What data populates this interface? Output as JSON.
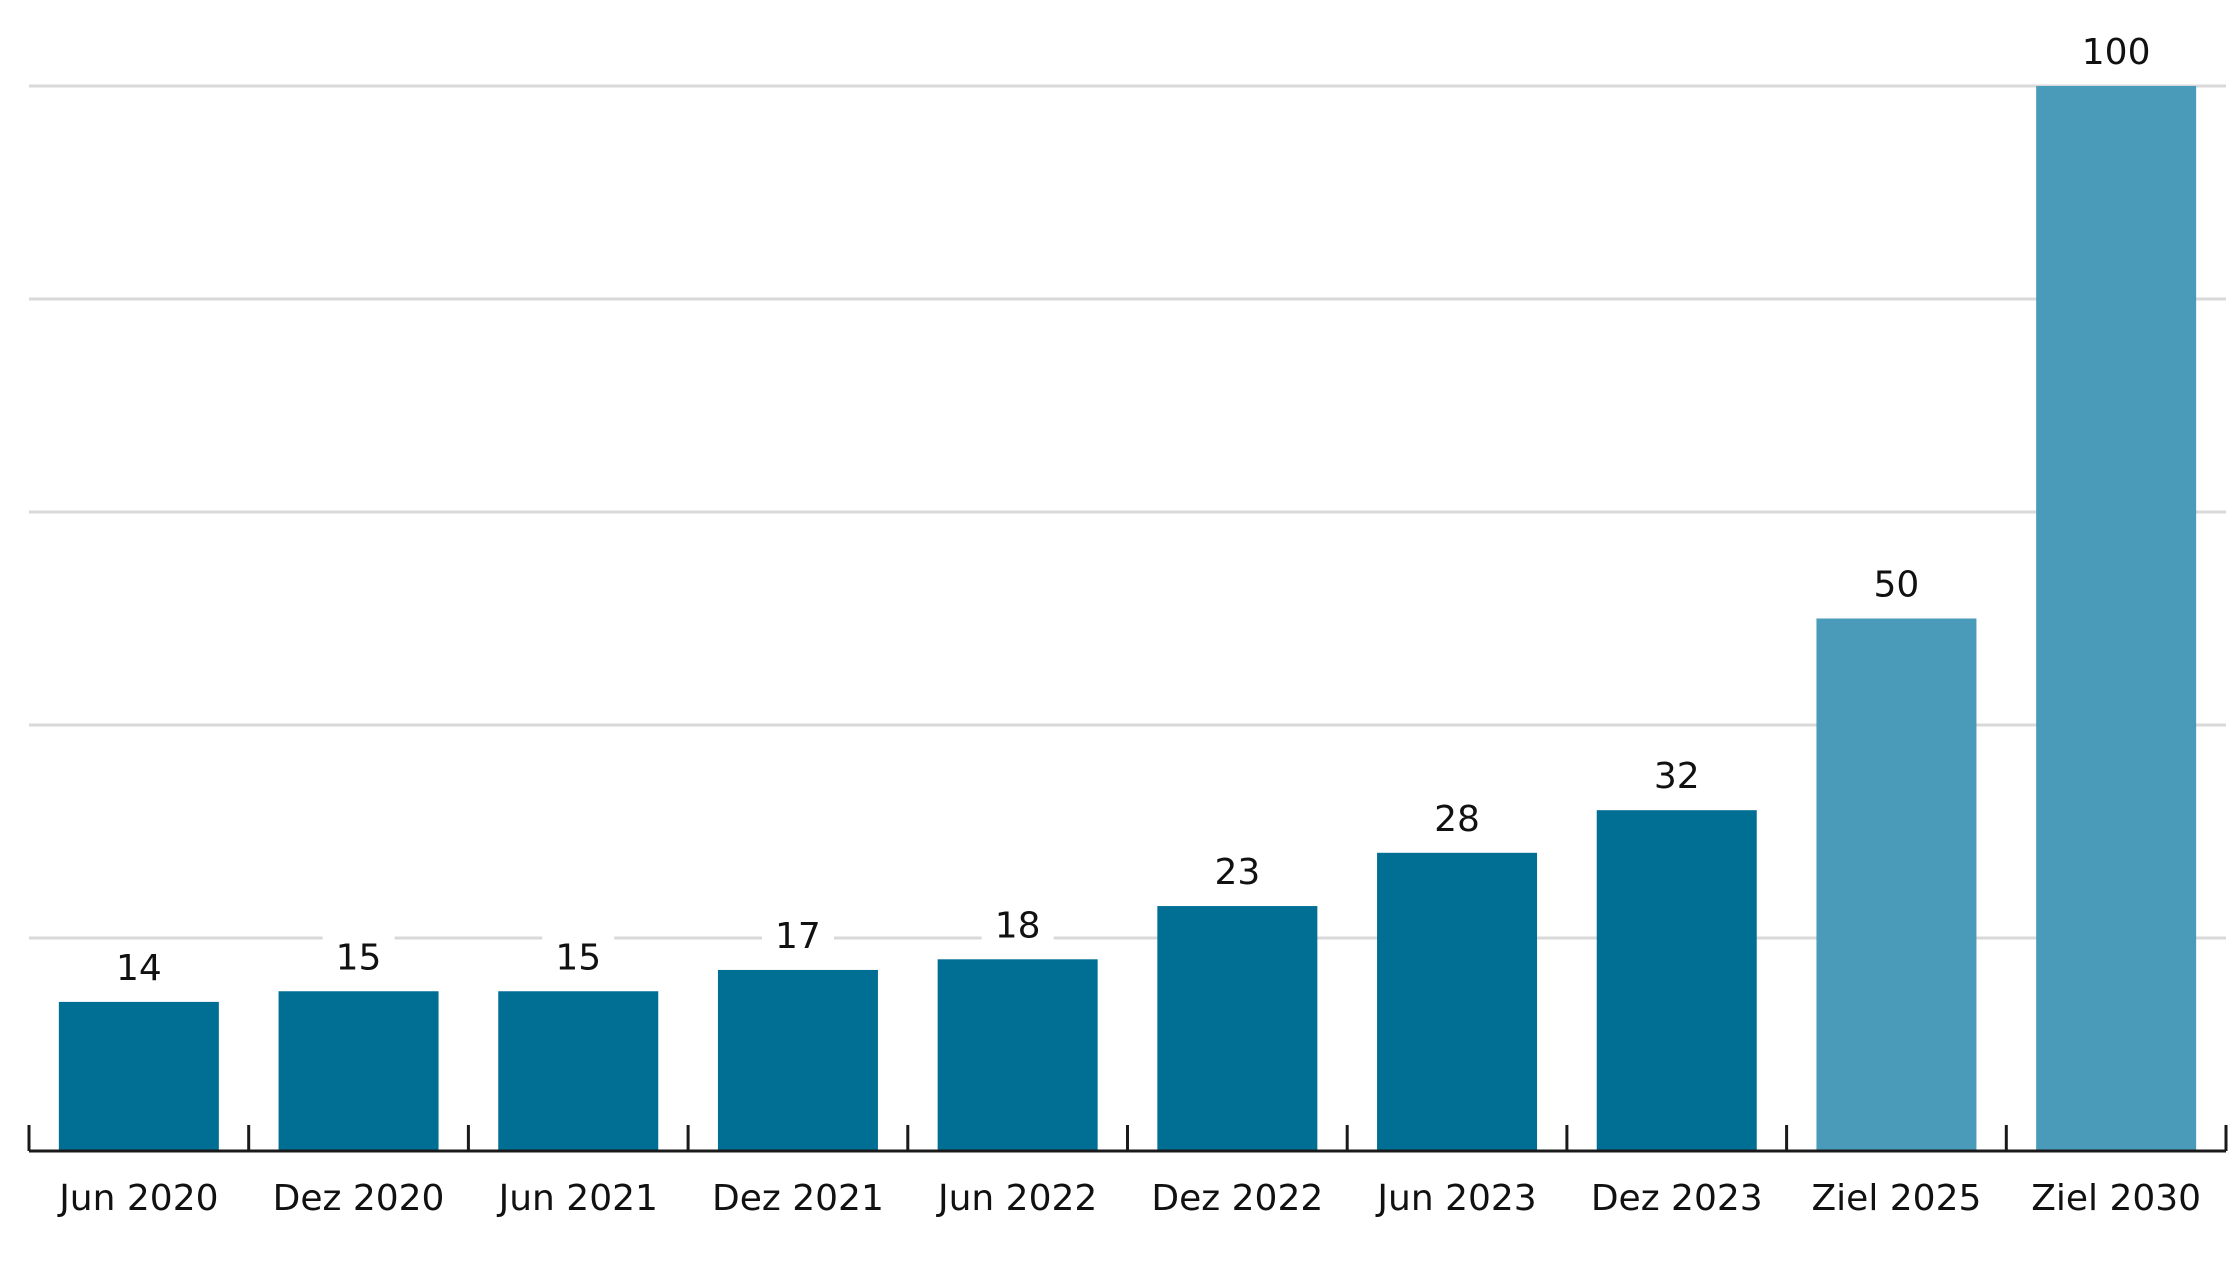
{
  "chart_data": {
    "type": "bar",
    "categories": [
      "Jun 2020",
      "Dez 2020",
      "Jun 2021",
      "Dez 2021",
      "Jun 2022",
      "Dez 2022",
      "Jun 2023",
      "Dez 2023",
      "Ziel 2025",
      "Ziel 2030"
    ],
    "values": [
      14,
      15,
      15,
      17,
      18,
      23,
      28,
      32,
      50,
      100
    ],
    "value_labels": [
      "14",
      "15",
      "15",
      "17",
      "18",
      "23",
      "28",
      "32",
      "50",
      "100"
    ],
    "title": "",
    "xlabel": "",
    "ylabel": "",
    "ylim": [
      0,
      100
    ],
    "yticks": [
      0,
      20,
      40,
      60,
      80,
      100
    ],
    "grid": true,
    "colors": {
      "actual": "#016e94",
      "target": "#4a9aba",
      "grid": "#d9d9d9",
      "axis": "#1a1a1a"
    },
    "target_categories": [
      "Ziel 2025",
      "Ziel 2030"
    ]
  }
}
